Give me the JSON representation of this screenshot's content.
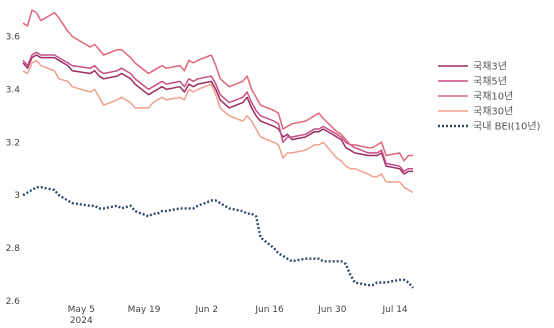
{
  "chart_data": {
    "type": "line",
    "x": [
      "2024-04-22",
      "2024-04-23",
      "2024-04-24",
      "2024-04-25",
      "2024-04-26",
      "2024-04-29",
      "2024-04-30",
      "2024-05-02",
      "2024-05-03",
      "2024-05-07",
      "2024-05-08",
      "2024-05-09",
      "2024-05-10",
      "2024-05-13",
      "2024-05-14",
      "2024-05-16",
      "2024-05-17",
      "2024-05-20",
      "2024-05-21",
      "2024-05-22",
      "2024-05-23",
      "2024-05-24",
      "2024-05-27",
      "2024-05-28",
      "2024-05-29",
      "2024-05-30",
      "2024-05-31",
      "2024-06-03",
      "2024-06-04",
      "2024-06-05",
      "2024-06-07",
      "2024-06-10",
      "2024-06-11",
      "2024-06-12",
      "2024-06-13",
      "2024-06-14",
      "2024-06-17",
      "2024-06-18",
      "2024-06-19",
      "2024-06-20",
      "2024-06-21",
      "2024-06-24",
      "2024-06-25",
      "2024-06-26",
      "2024-06-27",
      "2024-06-28",
      "2024-07-01",
      "2024-07-02",
      "2024-07-03",
      "2024-07-04",
      "2024-07-05",
      "2024-07-08",
      "2024-07-09",
      "2024-07-10",
      "2024-07-11",
      "2024-07-12",
      "2024-07-15",
      "2024-07-16",
      "2024-07-17",
      "2024-07-18"
    ],
    "series": [
      {
        "name": "국채3년",
        "color": "#9b2d62",
        "values": [
          3.5,
          3.48,
          3.52,
          3.53,
          3.52,
          3.52,
          3.51,
          3.49,
          3.47,
          3.46,
          3.47,
          3.45,
          3.44,
          3.45,
          3.46,
          3.44,
          3.42,
          3.38,
          3.39,
          3.4,
          3.41,
          3.4,
          3.41,
          3.39,
          3.42,
          3.41,
          3.42,
          3.43,
          3.4,
          3.36,
          3.33,
          3.35,
          3.37,
          3.33,
          3.3,
          3.28,
          3.26,
          3.25,
          3.22,
          3.23,
          3.21,
          3.22,
          3.23,
          3.24,
          3.24,
          3.25,
          3.22,
          3.21,
          3.18,
          3.17,
          3.16,
          3.15,
          3.15,
          3.15,
          3.16,
          3.11,
          3.1,
          3.08,
          3.09,
          3.09
        ]
      },
      {
        "name": "국채5년",
        "color": "#c84d86",
        "values": [
          3.51,
          3.49,
          3.53,
          3.54,
          3.53,
          3.53,
          3.52,
          3.5,
          3.49,
          3.48,
          3.49,
          3.47,
          3.46,
          3.47,
          3.48,
          3.46,
          3.44,
          3.4,
          3.41,
          3.42,
          3.43,
          3.42,
          3.43,
          3.41,
          3.44,
          3.43,
          3.44,
          3.45,
          3.42,
          3.38,
          3.35,
          3.37,
          3.39,
          3.35,
          3.32,
          3.3,
          3.28,
          3.27,
          3.2,
          3.22,
          3.22,
          3.23,
          3.24,
          3.25,
          3.25,
          3.26,
          3.23,
          3.22,
          3.2,
          3.19,
          3.18,
          3.16,
          3.16,
          3.16,
          3.17,
          3.12,
          3.11,
          3.09,
          3.1,
          3.1
        ]
      },
      {
        "name": "국채10년",
        "color": "#e0667a",
        "values": [
          3.65,
          3.64,
          3.7,
          3.69,
          3.66,
          3.69,
          3.67,
          3.62,
          3.6,
          3.56,
          3.57,
          3.55,
          3.53,
          3.55,
          3.55,
          3.52,
          3.5,
          3.46,
          3.47,
          3.48,
          3.49,
          3.48,
          3.49,
          3.47,
          3.51,
          3.5,
          3.51,
          3.53,
          3.49,
          3.44,
          3.41,
          3.43,
          3.45,
          3.4,
          3.37,
          3.34,
          3.32,
          3.31,
          3.25,
          3.26,
          3.27,
          3.28,
          3.29,
          3.3,
          3.31,
          3.29,
          3.24,
          3.23,
          3.21,
          3.19,
          3.19,
          3.18,
          3.18,
          3.19,
          3.2,
          3.15,
          3.16,
          3.13,
          3.15,
          3.15
        ]
      },
      {
        "name": "국채30년",
        "color": "#f0a08a",
        "values": [
          3.47,
          3.46,
          3.5,
          3.51,
          3.49,
          3.47,
          3.44,
          3.43,
          3.41,
          3.39,
          3.4,
          3.37,
          3.34,
          3.36,
          3.37,
          3.35,
          3.33,
          3.33,
          3.35,
          3.36,
          3.37,
          3.36,
          3.37,
          3.36,
          3.4,
          3.39,
          3.4,
          3.42,
          3.38,
          3.33,
          3.3,
          3.28,
          3.3,
          3.28,
          3.25,
          3.22,
          3.2,
          3.19,
          3.14,
          3.16,
          3.16,
          3.17,
          3.18,
          3.19,
          3.19,
          3.2,
          3.14,
          3.13,
          3.11,
          3.1,
          3.1,
          3.08,
          3.07,
          3.07,
          3.08,
          3.05,
          3.05,
          3.03,
          3.02,
          3.01
        ]
      },
      {
        "name": "국내 BEI(10년)",
        "color": "#2e4a6e",
        "dashed": true,
        "values": [
          3.0,
          3.01,
          3.02,
          3.03,
          3.03,
          3.02,
          3.0,
          2.98,
          2.97,
          2.96,
          2.96,
          2.95,
          2.95,
          2.96,
          2.95,
          2.96,
          2.94,
          2.92,
          2.93,
          2.93,
          2.94,
          2.94,
          2.95,
          2.95,
          2.95,
          2.95,
          2.96,
          2.98,
          2.98,
          2.97,
          2.95,
          2.94,
          2.93,
          2.93,
          2.92,
          2.84,
          2.8,
          2.78,
          2.77,
          2.76,
          2.75,
          2.76,
          2.76,
          2.76,
          2.76,
          2.75,
          2.75,
          2.75,
          2.74,
          2.7,
          2.67,
          2.66,
          2.66,
          2.67,
          2.67,
          2.67,
          2.68,
          2.68,
          2.67,
          2.65
        ]
      }
    ],
    "xticks": [
      {
        "date": "2024-05-05",
        "label": "May 5",
        "sublabel": "2024"
      },
      {
        "date": "2024-05-19",
        "label": "May 19",
        "sublabel": ""
      },
      {
        "date": "2024-06-02",
        "label": "Jun 2",
        "sublabel": ""
      },
      {
        "date": "2024-06-16",
        "label": "Jun 16",
        "sublabel": ""
      },
      {
        "date": "2024-06-30",
        "label": "Jun 30",
        "sublabel": ""
      },
      {
        "date": "2024-07-14",
        "label": "Jul 14",
        "sublabel": ""
      }
    ],
    "yticks": [
      2.6,
      2.8,
      3,
      3.2,
      3.4,
      3.6
    ],
    "ytick_labels": [
      "2.6",
      "2.8",
      "3",
      "3.2",
      "3.4",
      "3.6"
    ],
    "xlim": [
      "2024-04-22",
      "2024-07-18"
    ],
    "ylim": [
      2.6,
      3.7
    ],
    "grid": false,
    "legend_position": "right",
    "title": "",
    "xlabel": "",
    "ylabel": ""
  }
}
